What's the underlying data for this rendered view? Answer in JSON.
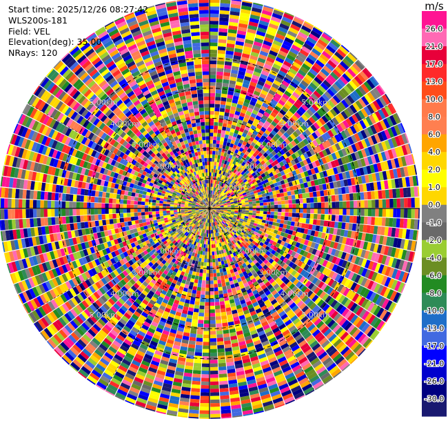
{
  "chart_data": {
    "type": "heatmap",
    "title": "",
    "info_lines": [
      "Start time: 2025/12/26 08:27:42",
      "WLS200s-181",
      "Field: VEL",
      "Elevation(deg): 35.00",
      "NRays: 120"
    ],
    "projection": "polar (PPI scan)",
    "rays": 120,
    "max_range_km": 7.0,
    "range_ring_labels": [
      "1.00km",
      "2.00km",
      "3.00km",
      "4.00km",
      "5.00km"
    ],
    "colorbar": {
      "unit": "m/s",
      "tick_labels": [
        "26.0",
        "21.0",
        "17.0",
        "13.0",
        "10.0",
        "8.0",
        "6.0",
        "4.0",
        "2.0",
        "1.0",
        "0.0",
        "-1.0",
        "-2.0",
        "-4.0",
        "-6.0",
        "-8.0",
        "-10.0",
        "-13.0",
        "-17.0",
        "-21.0",
        "-26.0",
        "-30.0"
      ],
      "colors": [
        "#ff1493",
        "#ff69b4",
        "#e8003a",
        "#ff2a2a",
        "#ff4c1a",
        "#ff7a4a",
        "#ff7f50",
        "#ffa500",
        "#ffd700",
        "#ffff00",
        "#ffd700",
        "#808080",
        "#696969",
        "#9acd32",
        "#6b8e23",
        "#228b22",
        "#2e8b57",
        "#1e6ec8",
        "#4169e1",
        "#0000ff",
        "#0000cd",
        "#000080",
        "#191970"
      ]
    },
    "colormap_note": "velocity values spanning -30.0 to 26.0 m/s, highly noisy field",
    "grid": true
  }
}
